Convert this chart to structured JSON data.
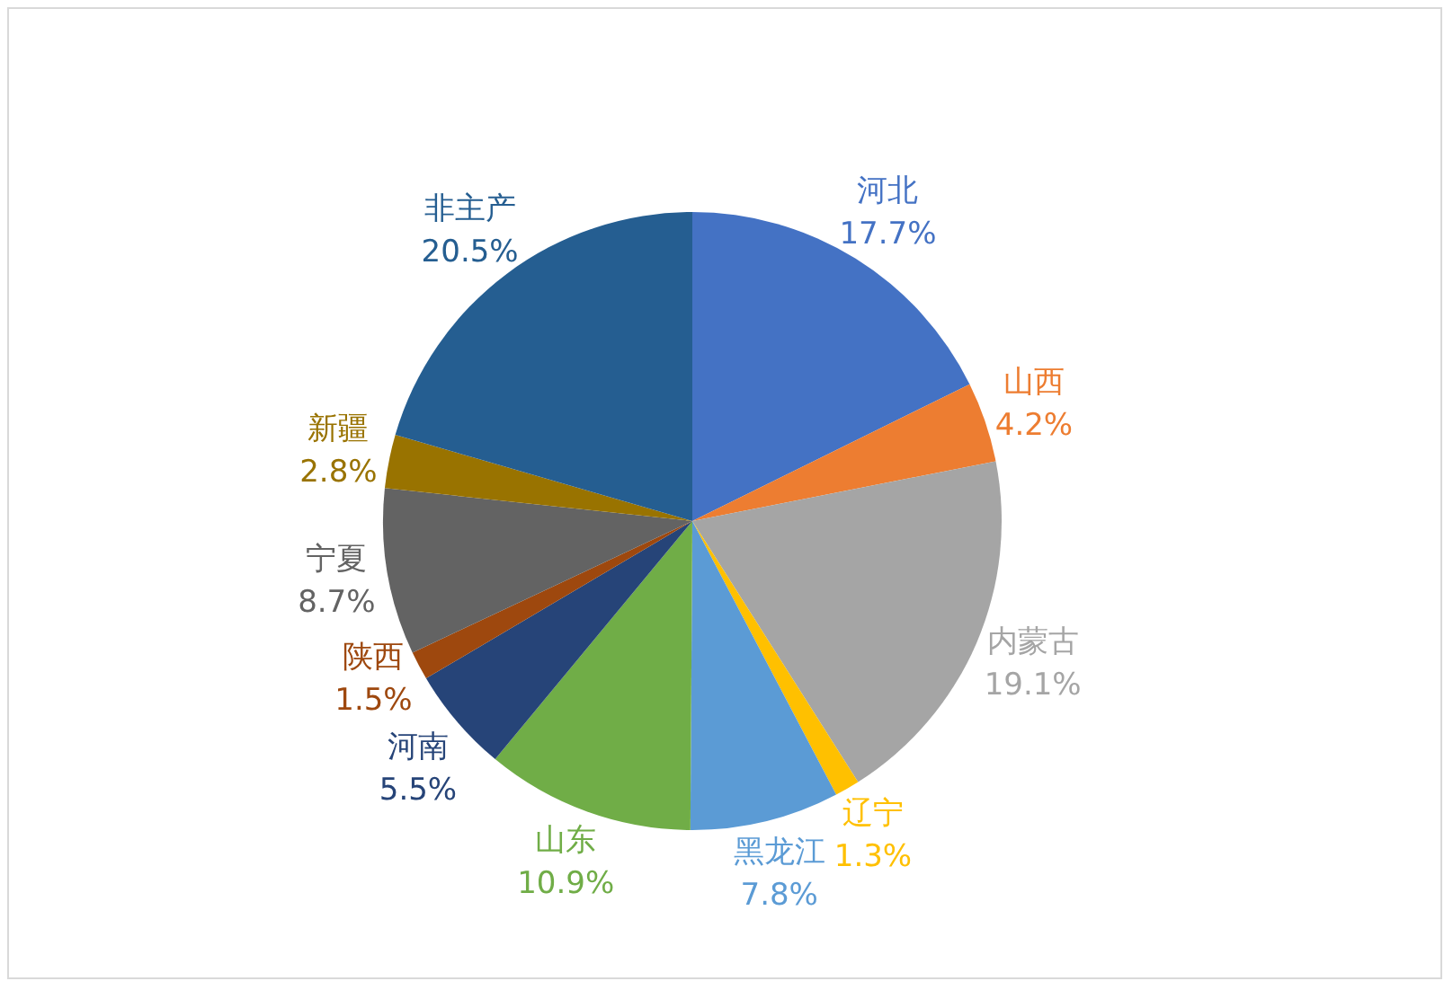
{
  "chart_data": {
    "type": "pie",
    "categories": [
      "河北",
      "山西",
      "内蒙古",
      "辽宁",
      "黑龙江",
      "山东",
      "河南",
      "陕西",
      "宁夏",
      "新疆",
      "非主产"
    ],
    "values": [
      17.7,
      4.2,
      19.1,
      1.3,
      7.8,
      10.9,
      5.5,
      1.5,
      8.7,
      2.8,
      20.5
    ],
    "value_labels": [
      "17.7%",
      "4.2%",
      "19.1%",
      "1.3%",
      "7.8%",
      "10.9%",
      "5.5%",
      "1.5%",
      "8.7%",
      "2.8%",
      "20.5%"
    ],
    "colors": [
      "#4472c4",
      "#ed7d31",
      "#a5a5a5",
      "#ffc000",
      "#5b9bd5",
      "#70ad47",
      "#264478",
      "#9e480e",
      "#636363",
      "#997300",
      "#255e91"
    ],
    "legend": false
  }
}
